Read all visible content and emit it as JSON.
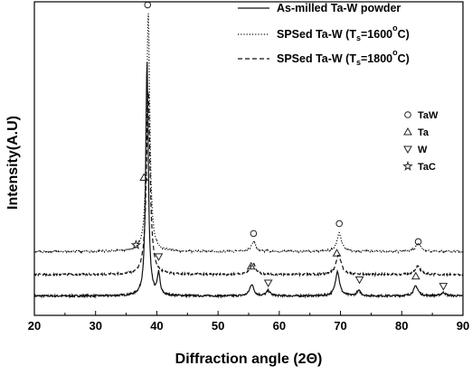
{
  "chart_data": {
    "type": "line",
    "xlabel": "Diffraction angle (2Θ)",
    "ylabel": "Intensity(A.U)",
    "xlim": [
      20,
      90
    ],
    "xticks": [
      "20",
      "30",
      "40",
      "50",
      "60",
      "70",
      "80",
      "90"
    ],
    "grid": false,
    "legend_position": "top-right",
    "series": [
      {
        "name": "As-milled Ta-W powder",
        "style": "solid",
        "baseline": 0.03,
        "peaks": [
          [
            38.4,
            1.42
          ],
          [
            40.3,
            0.13
          ],
          [
            55.5,
            0.07
          ],
          [
            58.2,
            0.03
          ],
          [
            69.5,
            0.15
          ],
          [
            73.0,
            0.03
          ],
          [
            82.3,
            0.06
          ],
          [
            86.8,
            0.02
          ]
        ],
        "widths": [
          0.25,
          0.25,
          0.4,
          0.4,
          0.4,
          0.4,
          0.45,
          0.45
        ]
      },
      {
        "name_prefix": "SPSed Ta-W (T",
        "name_sub": "s",
        "name_suffix": "=1600",
        "name_sup": "o",
        "name_end": "C)",
        "style": "dotted",
        "baseline": 0.3,
        "peaks": [
          [
            38.6,
            1.45
          ],
          [
            55.8,
            0.06
          ],
          [
            69.8,
            0.11
          ],
          [
            82.7,
            0.05
          ]
        ],
        "widths": [
          0.3,
          0.45,
          0.45,
          0.5
        ]
      },
      {
        "name_prefix": "SPSed Ta-W (T",
        "name_sub": "s",
        "name_suffix": "=1800",
        "name_sup": "o",
        "name_end": "C)",
        "style": "dashed",
        "baseline": 0.16,
        "peaks": [
          [
            38.6,
            1.12
          ],
          [
            55.7,
            0.07
          ],
          [
            69.7,
            0.12
          ],
          [
            82.6,
            0.05
          ]
        ],
        "widths": [
          0.35,
          0.5,
          0.5,
          0.55
        ]
      }
    ],
    "phase_legend": [
      {
        "symbol": "circle",
        "label": "TaW"
      },
      {
        "symbol": "triangle-up",
        "label": "Ta"
      },
      {
        "symbol": "triangle-down",
        "label": "W"
      },
      {
        "symbol": "star",
        "label": "TaC"
      }
    ],
    "peak_markers": [
      {
        "symbol": "circle",
        "x": 38.5,
        "y": 1.8
      },
      {
        "symbol": "circle",
        "x": 55.8,
        "y": 0.41
      },
      {
        "symbol": "circle",
        "x": 69.8,
        "y": 0.47
      },
      {
        "symbol": "circle",
        "x": 82.7,
        "y": 0.36
      },
      {
        "symbol": "triangle-up",
        "x": 37.9,
        "y": 0.75
      },
      {
        "symbol": "triangle-up",
        "x": 55.4,
        "y": 0.21
      },
      {
        "symbol": "triangle-up",
        "x": 69.4,
        "y": 0.29
      },
      {
        "symbol": "triangle-up",
        "x": 82.3,
        "y": 0.15
      },
      {
        "symbol": "triangle-down",
        "x": 40.3,
        "y": 0.27
      },
      {
        "symbol": "triangle-down",
        "x": 58.2,
        "y": 0.11
      },
      {
        "symbol": "triangle-down",
        "x": 73.1,
        "y": 0.13
      },
      {
        "symbol": "triangle-down",
        "x": 86.8,
        "y": 0.09
      },
      {
        "symbol": "star",
        "x": 36.6,
        "y": 0.34
      }
    ]
  }
}
